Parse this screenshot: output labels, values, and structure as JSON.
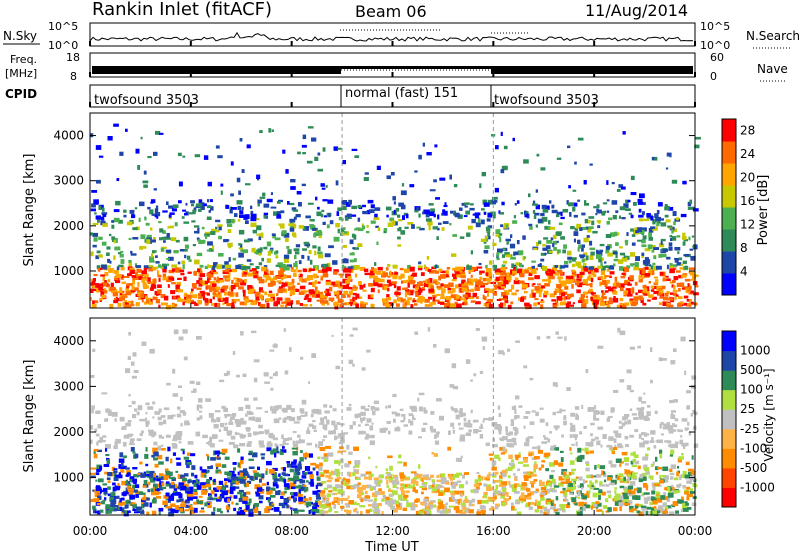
{
  "header": {
    "station": "Rankin Inlet (fitACF)",
    "beam": "Beam 06",
    "date": "11/Aug/2014"
  },
  "strip": {
    "nsky_label": "N.Sky",
    "nsearch_label": "N.Search",
    "nsky_ticks": [
      "10^5",
      "10^0"
    ],
    "nsearch_ticks": [
      "10^5",
      "10^0"
    ],
    "freq_label_1": "Freq.",
    "freq_label_2": "[MHz]",
    "freq_ticks": [
      "18",
      "8"
    ],
    "nave_label": "Nave",
    "nave_ticks": [
      "60",
      "0"
    ],
    "cpid_label": "CPID",
    "cpid_segments": [
      {
        "label": "twofsound 3503",
        "start": 0,
        "end": 10
      },
      {
        "label": "normal (fast) 151",
        "start": 10,
        "end": 16
      },
      {
        "label": "twofsound 3503",
        "start": 16,
        "end": 24
      }
    ]
  },
  "x_axis": {
    "label": "Time UT",
    "ticks": [
      "00:00",
      "04:00",
      "08:00",
      "12:00",
      "16:00",
      "20:00",
      "00:00"
    ]
  },
  "colors": {
    "power": [
      "#0000ff",
      "#1e46a8",
      "#2e8b57",
      "#4caf50",
      "#c8c800",
      "#ffa500",
      "#ff6a00",
      "#ff0000"
    ],
    "velocity": [
      "#ff0000",
      "#ff4500",
      "#ff8c00",
      "#ffb347",
      "#c0c0c0",
      "#b0e040",
      "#2e8b57",
      "#1e46a8",
      "#0000ff"
    ]
  },
  "chart_data": [
    {
      "type": "heatmap",
      "panel": "power",
      "xlabel": "Time UT",
      "ylabel": "Slant Range [km]",
      "xlim": [
        0,
        24
      ],
      "ylim": [
        180,
        4500
      ],
      "yticks": [
        "1000",
        "2000",
        "3000",
        "4000"
      ],
      "ytick_values": [
        1000,
        2000,
        3000,
        4000
      ],
      "colorbar_label": "Power [dB]",
      "colorbar_ticks": [
        "4",
        "8",
        "12",
        "16",
        "20",
        "24",
        "28"
      ],
      "colorbar_range": [
        0,
        30
      ],
      "mode_change_times": [
        10,
        16
      ]
    },
    {
      "type": "heatmap",
      "panel": "velocity",
      "xlabel": "Time UT",
      "ylabel": "Slant Range [km]",
      "xlim": [
        0,
        24
      ],
      "ylim": [
        180,
        4500
      ],
      "yticks": [
        "1000",
        "2000",
        "3000",
        "4000"
      ],
      "ytick_values": [
        1000,
        2000,
        3000,
        4000
      ],
      "colorbar_label": "Velocity [m s⁻¹]",
      "colorbar_ticks": [
        "1000",
        "500",
        "100",
        "25",
        "-25",
        "-100",
        "-500",
        "-1000"
      ],
      "mode_change_times": [
        10,
        16
      ]
    }
  ]
}
